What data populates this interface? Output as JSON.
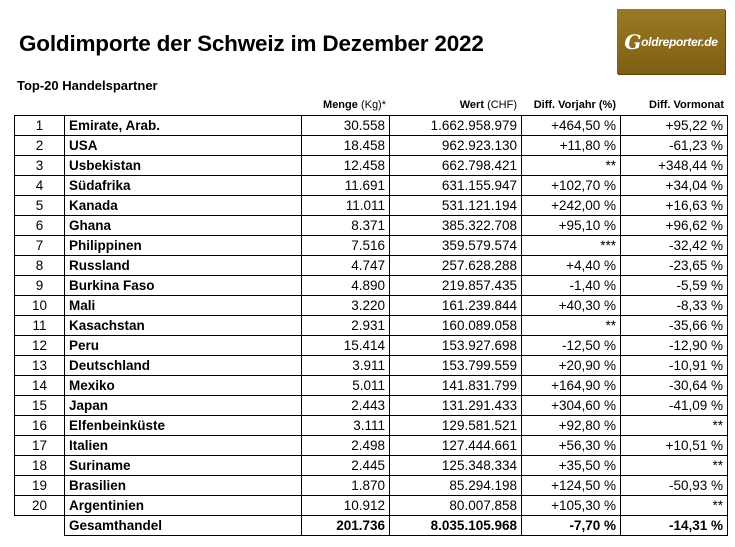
{
  "title": "Goldimporte der Schweiz im Dezember 2022",
  "subtitle": "Top-20 Handelspartner",
  "logo_text": "Goldreporter.de",
  "logo_color": "#8a6a1a",
  "columns": {
    "menge": "Menge",
    "menge_unit": "(Kg)*",
    "wert": "Wert",
    "wert_unit": "(CHF)",
    "vorjahr": "Diff. Vorjahr (%)",
    "vormonat": "Diff. Vormonat"
  },
  "rows": [
    [
      "1",
      "Emirate, Arab.",
      "30.558",
      "1.662.958.979",
      "+464,50 %",
      "+95,22 %"
    ],
    [
      "2",
      "USA",
      "18.458",
      "962.923.130",
      "+11,80 %",
      "-61,23 %"
    ],
    [
      "3",
      "Usbekistan",
      "12.458",
      "662.798.421",
      "**",
      "+348,44 %"
    ],
    [
      "4",
      "Südafrika",
      "11.691",
      "631.155.947",
      "+102,70 %",
      "+34,04 %"
    ],
    [
      "5",
      "Kanada",
      "11.011",
      "531.121.194",
      "+242,00 %",
      "+16,63 %"
    ],
    [
      "6",
      "Ghana",
      "8.371",
      "385.322.708",
      "+95,10 %",
      "+96,62 %"
    ],
    [
      "7",
      "Philippinen",
      "7.516",
      "359.579.574",
      "***",
      "-32,42 %"
    ],
    [
      "8",
      "Russland",
      "4.747",
      "257.628.288",
      "+4,40 %",
      "-23,65 %"
    ],
    [
      "9",
      "Burkina Faso",
      "4.890",
      "219.857.435",
      "-1,40 %",
      "-5,59 %"
    ],
    [
      "10",
      "Mali",
      "3.220",
      "161.239.844",
      "+40,30 %",
      "-8,33 %"
    ],
    [
      "11",
      "Kasachstan",
      "2.931",
      "160.089.058",
      "**",
      "-35,66 %"
    ],
    [
      "12",
      "Peru",
      "15.414",
      "153.927.698",
      "-12,50 %",
      "-12,90 %"
    ],
    [
      "13",
      "Deutschland",
      "3.911",
      "153.799.559",
      "+20,90 %",
      "-10,91 %"
    ],
    [
      "14",
      "Mexiko",
      "5.011",
      "141.831.799",
      "+164,90 %",
      "-30,64 %"
    ],
    [
      "15",
      "Japan",
      "2.443",
      "131.291.433",
      "+304,60 %",
      "-41,09 %"
    ],
    [
      "16",
      "Elfenbeinküste",
      "3.111",
      "129.581.521",
      "+92,80 %",
      "**"
    ],
    [
      "17",
      "Italien",
      "2.498",
      "127.444.661",
      "+56,30 %",
      "+10,51 %"
    ],
    [
      "18",
      "Suriname",
      "2.445",
      "125.348.334",
      "+35,50 %",
      "**"
    ],
    [
      "19",
      "Brasilien",
      "1.870",
      "85.294.198",
      "+124,50 %",
      "-50,93 %"
    ],
    [
      "20",
      "Argentinien",
      "10.912",
      "80.007.858",
      "+105,30 %",
      "**"
    ]
  ],
  "total": {
    "label": "Gesamthandel",
    "menge": "201.736",
    "wert": "8.035.105.968",
    "vorjahr": "-7,70 %",
    "vormonat": "-14,31 %"
  }
}
